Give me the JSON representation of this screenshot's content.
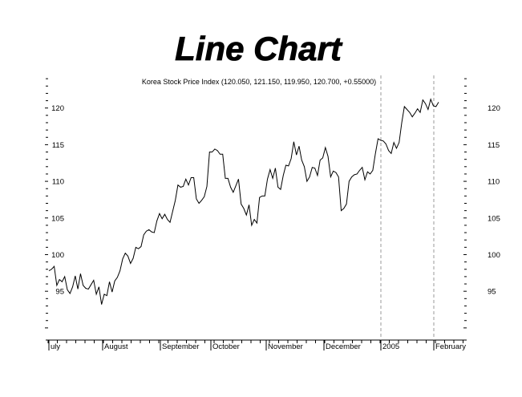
{
  "chart_data": {
    "type": "line",
    "title": "Line Chart",
    "subtitle": "Korea Stock Price Index (120.050, 121.150, 119.950, 120.700, +0.55000)",
    "ylim": [
      89,
      125
    ],
    "yticks": [
      95,
      100,
      105,
      110,
      115,
      120
    ],
    "grid": false,
    "x_month_labels": [
      "uly",
      "August",
      "September",
      "October",
      "November",
      "December",
      "2005",
      "February"
    ],
    "divider_label_indexes": [
      6,
      7
    ],
    "series": [
      {
        "values": [
          97.8,
          98.0,
          98.4,
          95.8,
          96.6,
          96.3,
          97.0,
          95.2,
          94.7,
          95.6,
          97.1,
          95.3,
          97.4,
          95.8,
          95.4,
          95.3,
          95.9,
          96.5,
          94.6,
          95.6,
          93.2,
          94.6,
          94.4,
          96.3,
          94.9,
          96.4,
          96.9,
          97.8,
          99.4,
          100.2,
          99.8,
          98.8,
          99.5,
          101.0,
          100.8,
          101.1,
          102.7,
          103.2,
          103.4,
          103.1,
          103.0,
          104.6,
          105.6,
          104.9,
          105.5,
          104.8,
          104.4,
          105.9,
          107.4,
          109.5,
          109.2,
          109.3,
          110.3,
          109.5,
          110.5,
          110.5,
          107.6,
          107.0,
          107.4,
          107.9,
          109.3,
          114.0,
          114.0,
          114.4,
          114.2,
          113.7,
          113.7,
          110.4,
          110.4,
          109.2,
          108.5,
          109.4,
          110.3,
          106.9,
          106.3,
          105.4,
          106.8,
          104.0,
          104.8,
          104.3,
          107.8,
          108.0,
          108.0,
          110.3,
          111.6,
          110.4,
          111.8,
          109.2,
          108.9,
          110.8,
          112.2,
          112.1,
          113.1,
          115.4,
          113.6,
          114.8,
          112.9,
          112.0,
          110.0,
          110.6,
          111.9,
          111.8,
          110.8,
          112.9,
          113.2,
          114.6,
          113.4,
          110.6,
          111.4,
          111.2,
          110.6,
          106.0,
          106.3,
          106.9,
          110.0,
          110.6,
          110.9,
          111.0,
          111.5,
          111.9,
          110.2,
          111.3,
          111.0,
          111.5,
          113.8,
          115.8,
          115.6,
          115.5,
          115.1,
          114.2,
          113.8,
          115.3,
          114.5,
          115.3,
          118.0,
          120.2,
          119.8,
          119.4,
          118.8,
          119.3,
          119.9,
          119.4,
          121.1,
          120.6,
          119.8,
          121.2,
          120.3,
          120.2,
          120.8
        ]
      }
    ]
  }
}
